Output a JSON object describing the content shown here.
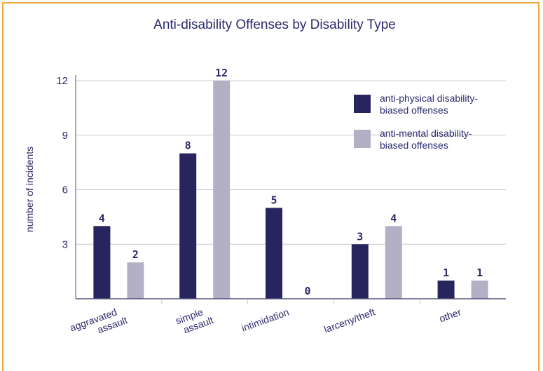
{
  "chart_data": {
    "type": "bar",
    "title": "Anti-disability Offenses by Disability Type",
    "xlabel": "",
    "ylabel": "number of incidents",
    "ylim": [
      0,
      12
    ],
    "yticks": [
      3,
      6,
      9,
      12
    ],
    "grid": true,
    "legend_position": "top-right",
    "categories": [
      [
        "aggravated",
        "assault"
      ],
      [
        "simple",
        "assault"
      ],
      [
        "intimidation"
      ],
      [
        "larceny/theft"
      ],
      [
        "other"
      ]
    ],
    "series": [
      {
        "name": [
          "anti-physical disability-",
          "biased offenses"
        ],
        "color": "#27245e",
        "values": [
          4,
          8,
          5,
          3,
          1
        ]
      },
      {
        "name": [
          "anti-mental disability-",
          "biased offenses"
        ],
        "color": "#b3b0c6",
        "values": [
          2,
          12,
          0,
          4,
          1
        ]
      }
    ]
  },
  "colors": {
    "border": "#f2a93b",
    "text": "#2b2a6b",
    "grid": "#c9c8d4",
    "axis": "#55547a"
  }
}
